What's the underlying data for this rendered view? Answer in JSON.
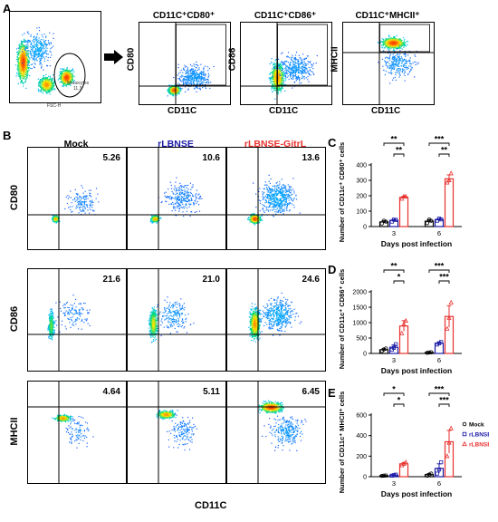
{
  "colors": {
    "mock": "#000000",
    "rlbnse": "#1a1aa6",
    "gitrl": "#e8322f",
    "density_low": "#1e3cff",
    "density_high": "#ffd400"
  },
  "panelA": {
    "letter": "A",
    "gate_label_1": "Monocytes",
    "gate_label_2": "11.3",
    "fsc_label": "FSC-H",
    "arrow": "arrow-right-icon",
    "plots": [
      {
        "title": "CD11C⁺CD80⁺",
        "ylabel": "CD80",
        "xlabel": "CD11C"
      },
      {
        "title": "CD11C⁺CD86⁺",
        "ylabel": "CD86",
        "xlabel": "CD11C"
      },
      {
        "title": "CD11C⁺MHCII⁺",
        "ylabel": "MHCII",
        "xlabel": "CD11C"
      }
    ]
  },
  "panelB": {
    "letter": "B",
    "columns": [
      "Mock",
      "rLBNSE",
      "rLBNSE-GitrL"
    ],
    "rows": [
      {
        "ylabel": "CD80",
        "values": [
          "5.26",
          "10.6",
          "13.6"
        ]
      },
      {
        "ylabel": "CD86",
        "values": [
          "21.6",
          "21.0",
          "24.6"
        ]
      },
      {
        "ylabel": "MHCII",
        "values": [
          "4.64",
          "5.11",
          "6.45"
        ]
      }
    ],
    "xlabel": "CD11C"
  },
  "chart_data": [
    {
      "panel": "C",
      "type": "bar",
      "ylabel": "Number of CD11c⁺ CD80⁺ cells",
      "xlabel": "Days post infection",
      "categories": [
        "3",
        "6"
      ],
      "ylim": [
        0,
        400
      ],
      "yticks": [
        "0",
        "100",
        "200",
        "300",
        "400"
      ],
      "series": [
        {
          "name": "Mock",
          "values": [
            30,
            35
          ],
          "points": [
            [
              20,
              38,
              32
            ],
            [
              22,
              45,
              38
            ]
          ]
        },
        {
          "name": "rLBNSE",
          "values": [
            40,
            45
          ],
          "points": [
            [
              32,
              45,
              43
            ],
            [
              38,
              52,
              46
            ]
          ]
        },
        {
          "name": "rLBNSE-GitrL",
          "values": [
            190,
            310
          ],
          "points": [
            [
              180,
              195,
              195
            ],
            [
              285,
              300,
              345
            ]
          ]
        }
      ],
      "significance": [
        {
          "label": "**",
          "day": "3",
          "span": "Mock-GitrL"
        },
        {
          "label": "**",
          "day": "3",
          "span": "rLBNSE-GitrL"
        },
        {
          "label": "***",
          "day": "6",
          "span": "Mock-GitrL"
        },
        {
          "label": "**",
          "day": "6",
          "span": "rLBNSE-GitrL"
        }
      ]
    },
    {
      "panel": "D",
      "type": "bar",
      "ylabel": "Number of CD11c⁺ CD86⁺ cells",
      "xlabel": "Days post infection",
      "categories": [
        "3",
        "6"
      ],
      "ylim": [
        0,
        2000
      ],
      "yticks": [
        "0",
        "500",
        "1000",
        "1500",
        "2000"
      ],
      "series": [
        {
          "name": "Mock",
          "values": [
            120,
            30
          ],
          "points": [
            [
              80,
              130,
              160
            ],
            [
              20,
              30,
              40
            ]
          ]
        },
        {
          "name": "rLBNSE",
          "values": [
            200,
            330
          ],
          "points": [
            [
              120,
              180,
              300
            ],
            [
              290,
              330,
              370
            ]
          ]
        },
        {
          "name": "rLBNSE-GitrL",
          "values": [
            890,
            1200
          ],
          "points": [
            [
              650,
              950,
              1060
            ],
            [
              800,
              1150,
              1650
            ]
          ]
        }
      ],
      "significance": [
        {
          "label": "**",
          "day": "3",
          "span": "Mock-GitrL"
        },
        {
          "label": "*",
          "day": "3",
          "span": "rLBNSE-GitrL"
        },
        {
          "label": "***",
          "day": "6",
          "span": "Mock-GitrL"
        },
        {
          "label": "***",
          "day": "6",
          "span": "rLBNSE-GitrL"
        }
      ]
    },
    {
      "panel": "E",
      "type": "bar",
      "ylabel": "Number of CD11c⁺ MHCII⁺ cells",
      "xlabel": "Days post infection",
      "categories": [
        "3",
        "6"
      ],
      "ylim": [
        0,
        600
      ],
      "yticks": [
        "0",
        "200",
        "400",
        "600"
      ],
      "series": [
        {
          "name": "Mock",
          "values": [
            10,
            20
          ],
          "points": [
            [
              8,
              10,
              12
            ],
            [
              10,
              20,
              30
            ]
          ]
        },
        {
          "name": "rLBNSE",
          "values": [
            15,
            80
          ],
          "points": [
            [
              10,
              15,
              20
            ],
            [
              30,
              70,
              140
            ]
          ]
        },
        {
          "name": "rLBNSE-GitrL",
          "values": [
            125,
            340
          ],
          "points": [
            [
              110,
              125,
              140
            ],
            [
              200,
              330,
              470
            ]
          ]
        }
      ],
      "significance": [
        {
          "label": "*",
          "day": "3",
          "span": "Mock-GitrL"
        },
        {
          "label": "*",
          "day": "3",
          "span": "rLBNSE-GitrL"
        },
        {
          "label": "***",
          "day": "6",
          "span": "Mock-GitrL"
        },
        {
          "label": "***",
          "day": "6",
          "span": "rLBNSE-GitrL"
        }
      ],
      "legend": [
        "Mock",
        "rLBNSE",
        "rLBNSE-GitrL"
      ]
    }
  ]
}
